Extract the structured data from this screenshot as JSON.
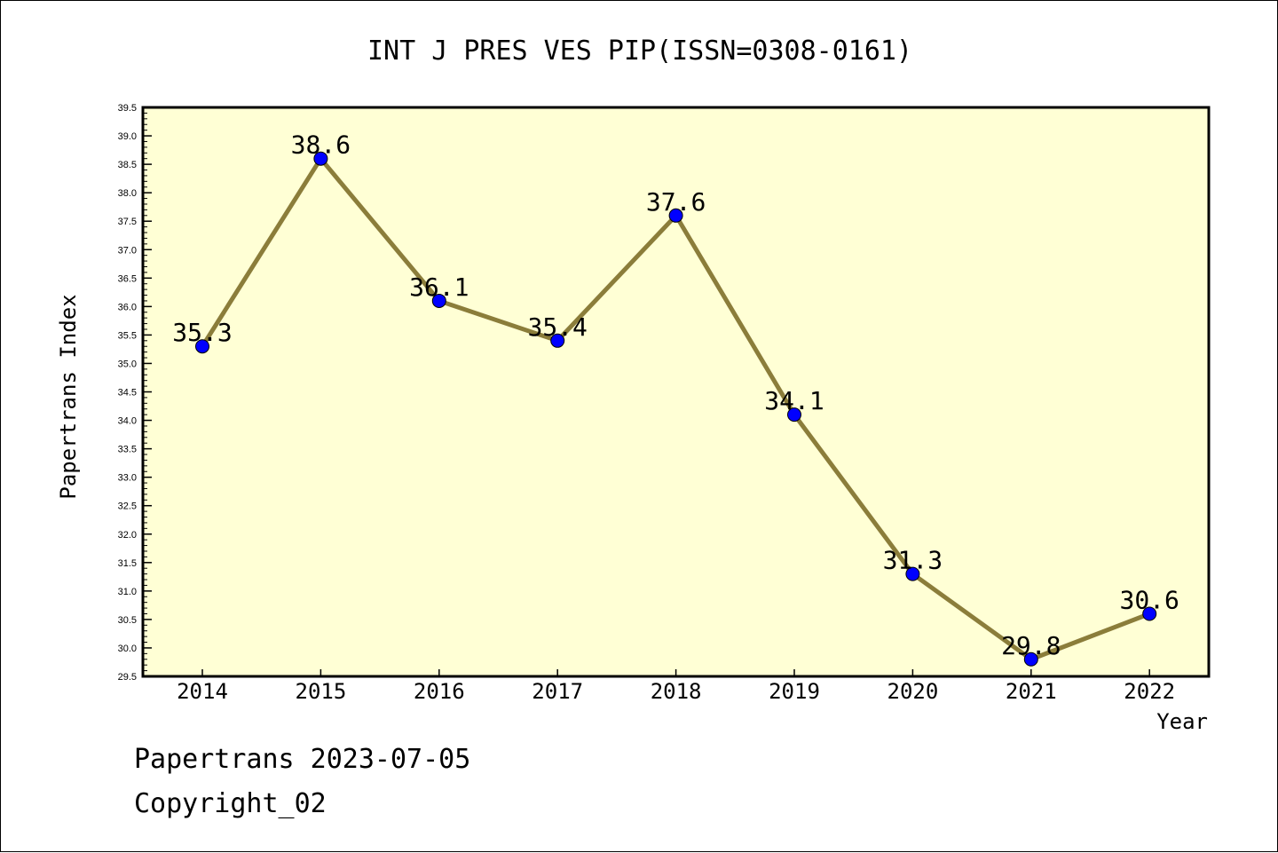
{
  "chart_data": {
    "type": "line",
    "title": "INT J PRES VES PIP(ISSN=0308-0161)",
    "xlabel": "Year",
    "ylabel": "Papertrans Index",
    "categories": [
      "2014",
      "2015",
      "2016",
      "2017",
      "2018",
      "2019",
      "2020",
      "2021",
      "2022"
    ],
    "series": [
      {
        "values": [
          35.3,
          38.6,
          36.1,
          35.4,
          37.6,
          34.1,
          31.3,
          29.8,
          30.6
        ],
        "data_labels": [
          "35.3",
          "38.6",
          "36.1",
          "35.4",
          "37.6",
          "34.1",
          "31.3",
          "29.8",
          "30.6"
        ],
        "line_color": "#8b7d3a",
        "marker_color": "#0000ff"
      }
    ],
    "ylim": [
      29.5,
      39.5
    ],
    "y_ticks": [
      "29.5",
      "30.0",
      "30.5",
      "31.0",
      "31.5",
      "32.0",
      "32.5",
      "33.0",
      "33.5",
      "34.0",
      "34.5",
      "35.0",
      "35.5",
      "36.0",
      "36.5",
      "37.0",
      "37.5",
      "38.0",
      "38.5",
      "39.0",
      "39.5"
    ],
    "plot_background": "#ffffd5",
    "grid": false
  },
  "footer": {
    "line1": "Papertrans 2023-07-05",
    "line2": "Copyright_02"
  }
}
